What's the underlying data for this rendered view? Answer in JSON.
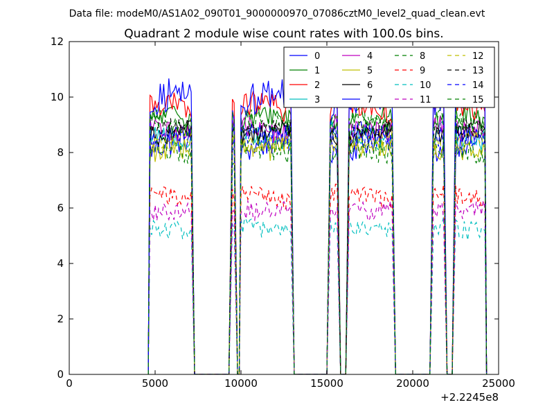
{
  "chart_data": {
    "type": "line",
    "suptitle": "Data file: modeM0/AS1A02_090T01_9000000970_07086cztM0_level2_quad_clean.evt",
    "title": "Quadrant 2 module wise count rates with 100.0s bins.",
    "xlabel": "",
    "ylabel": "",
    "x_offset_label": "+2.2245e8",
    "xlim": [
      0,
      25000
    ],
    "ylim": [
      0,
      12
    ],
    "grid": false,
    "legend_position": "top-right",
    "legend_columns": 4,
    "x_ticks": [
      0,
      5000,
      10000,
      15000,
      20000,
      25000
    ],
    "y_ticks": [
      0,
      2,
      4,
      6,
      8,
      10,
      12
    ],
    "x_tick_labels": [
      "0",
      "5000",
      "10000",
      "15000",
      "20000",
      "25000"
    ],
    "y_tick_labels": [
      "0",
      "2",
      "4",
      "6",
      "8",
      "10",
      "12"
    ],
    "bin_size_s": 100,
    "segments": [
      {
        "start": 4700,
        "end": 7100,
        "rise_at": 4600,
        "fall_to": 7300
      },
      {
        "start": 9500,
        "end": 9600,
        "rise_at": 9300,
        "fall_to": 9800
      },
      {
        "start": 10000,
        "end": 12900,
        "rise_at": 9900,
        "fall_to": 13100
      },
      {
        "start": 15200,
        "end": 15600,
        "rise_at": 15000,
        "fall_to": 15800
      },
      {
        "start": 16300,
        "end": 18800,
        "rise_at": 16100,
        "fall_to": 19000
      },
      {
        "start": 21200,
        "end": 21800,
        "rise_at": 21000,
        "fall_to": 22000
      },
      {
        "start": 22500,
        "end": 24200,
        "rise_at": 22300,
        "fall_to": 24300
      }
    ],
    "series": [
      {
        "name": "0",
        "color": "#0000ff",
        "dash": "solid",
        "level": 8.3,
        "amp": 0.5
      },
      {
        "name": "1",
        "color": "#008000",
        "dash": "solid",
        "level": 9.2,
        "amp": 0.4
      },
      {
        "name": "2",
        "color": "#ff0000",
        "dash": "solid",
        "level": 9.6,
        "amp": 0.45
      },
      {
        "name": "3",
        "color": "#00bfbf",
        "dash": "solid",
        "level": 8.6,
        "amp": 0.4
      },
      {
        "name": "4",
        "color": "#bf00bf",
        "dash": "solid",
        "level": 8.9,
        "amp": 0.4
      },
      {
        "name": "5",
        "color": "#bfbf00",
        "dash": "solid",
        "level": 8.2,
        "amp": 0.4
      },
      {
        "name": "6",
        "color": "#000000",
        "dash": "solid",
        "level": 8.7,
        "amp": 0.35
      },
      {
        "name": "7",
        "color": "#0000ff",
        "dash": "solid",
        "level": 9.9,
        "amp": 0.6
      },
      {
        "name": "8",
        "color": "#008000",
        "dash": "dashed",
        "level": 8.0,
        "amp": 0.45
      },
      {
        "name": "9",
        "color": "#ff0000",
        "dash": "dashed",
        "level": 6.4,
        "amp": 0.35
      },
      {
        "name": "10",
        "color": "#00bfbf",
        "dash": "dashed",
        "level": 5.3,
        "amp": 0.35
      },
      {
        "name": "11",
        "color": "#bf00bf",
        "dash": "dashed",
        "level": 6.0,
        "amp": 0.35
      },
      {
        "name": "12",
        "color": "#bfbf00",
        "dash": "dashed",
        "level": 8.4,
        "amp": 0.4
      },
      {
        "name": "13",
        "color": "#000000",
        "dash": "dashed",
        "level": 8.8,
        "amp": 0.35
      },
      {
        "name": "14",
        "color": "#0000ff",
        "dash": "dashed",
        "level": 8.5,
        "amp": 0.45
      },
      {
        "name": "15",
        "color": "#008000",
        "dash": "dashed",
        "level": 9.0,
        "amp": 0.4
      }
    ]
  }
}
